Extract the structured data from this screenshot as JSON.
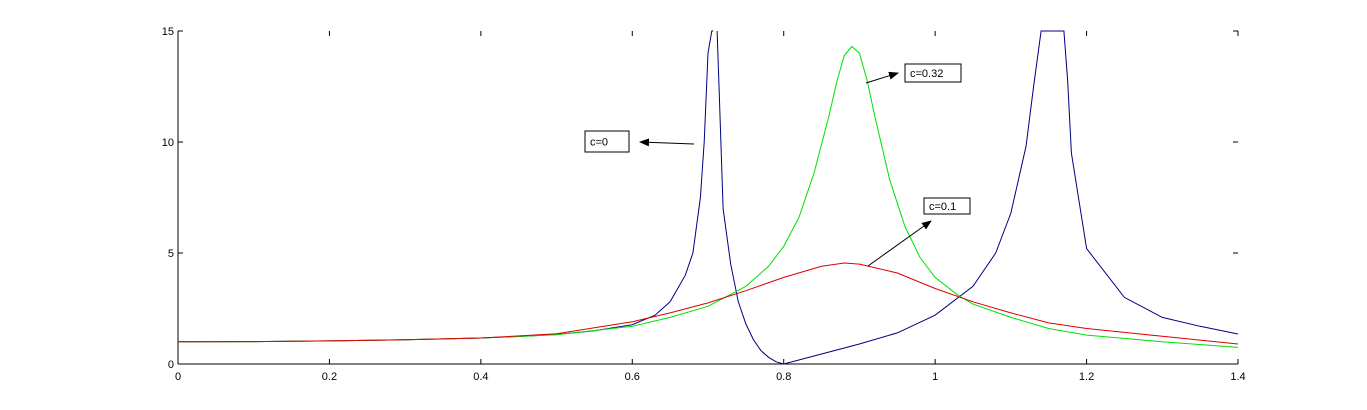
{
  "chart_data": {
    "type": "line",
    "title": "",
    "xlabel": "",
    "ylabel": "",
    "xlim": [
      0,
      1.4
    ],
    "ylim": [
      0,
      15
    ],
    "grid": false,
    "legend": "none",
    "x_ticks": [
      "0",
      "0.2",
      "0.4",
      "0.6",
      "0.8",
      "1",
      "1.2",
      "1.4"
    ],
    "y_ticks": [
      "0",
      "5",
      "10",
      "15"
    ],
    "series": [
      {
        "color": "#000080",
        "x": [
          0,
          0.1,
          0.2,
          0.3,
          0.4,
          0.45,
          0.5,
          0.55,
          0.6,
          0.63,
          0.65,
          0.67,
          0.68,
          0.69,
          0.695,
          0.7,
          0.705,
          0.707
        ],
        "y": [
          1.0,
          1.01,
          1.04,
          1.09,
          1.17,
          1.24,
          1.33,
          1.5,
          1.77,
          2.2,
          2.8,
          4.0,
          5.0,
          7.5,
          10.0,
          14.0,
          15.0,
          15.0
        ]
      },
      {
        "color": "#000080",
        "x": [
          0.712,
          0.715,
          0.72,
          0.73,
          0.74,
          0.75,
          0.76,
          0.77,
          0.78,
          0.79,
          0.8,
          0.85,
          0.9,
          0.95,
          1.0,
          1.05,
          1.08,
          1.1,
          1.12,
          1.13,
          1.14,
          1.15,
          1.16,
          1.17,
          1.175,
          1.18,
          1.2,
          1.25,
          1.3,
          1.35,
          1.4
        ],
        "y": [
          15.0,
          12.0,
          7.0,
          4.5,
          2.8,
          1.8,
          1.1,
          0.6,
          0.3,
          0.1,
          0.0,
          0.45,
          0.9,
          1.4,
          2.2,
          3.5,
          5.0,
          6.8,
          9.8,
          12.5,
          15.0,
          15.0,
          15.0,
          15.0,
          12.8,
          9.5,
          5.2,
          3.0,
          2.1,
          1.7,
          1.35
        ]
      },
      {
        "color": "#00e000",
        "x": [
          0,
          0.1,
          0.2,
          0.3,
          0.4,
          0.5,
          0.6,
          0.65,
          0.7,
          0.75,
          0.78,
          0.8,
          0.82,
          0.84,
          0.86,
          0.87,
          0.88,
          0.89,
          0.9,
          0.91,
          0.92,
          0.94,
          0.96,
          0.98,
          1.0,
          1.03,
          1.05,
          1.1,
          1.15,
          1.2,
          1.3,
          1.4
        ],
        "y": [
          1.0,
          1.01,
          1.04,
          1.09,
          1.17,
          1.32,
          1.7,
          2.1,
          2.6,
          3.5,
          4.4,
          5.3,
          6.6,
          8.6,
          11.2,
          12.7,
          13.9,
          14.3,
          14.0,
          12.8,
          11.2,
          8.3,
          6.2,
          4.8,
          3.9,
          3.1,
          2.7,
          2.1,
          1.6,
          1.3,
          1.0,
          0.75
        ]
      },
      {
        "color": "#e00000",
        "x": [
          0,
          0.1,
          0.2,
          0.3,
          0.4,
          0.5,
          0.6,
          0.65,
          0.7,
          0.75,
          0.8,
          0.85,
          0.88,
          0.9,
          0.95,
          1.0,
          1.05,
          1.1,
          1.15,
          1.2,
          1.3,
          1.4
        ],
        "y": [
          1.0,
          1.01,
          1.04,
          1.09,
          1.17,
          1.36,
          1.9,
          2.3,
          2.75,
          3.3,
          3.9,
          4.4,
          4.55,
          4.5,
          4.1,
          3.4,
          2.8,
          2.3,
          1.85,
          1.6,
          1.25,
          0.9
        ]
      }
    ],
    "annotations": [
      {
        "text": "c=0",
        "arrow_to": [
          0.693,
          9.9
        ]
      },
      {
        "text": "c=0.32",
        "arrow_to": [
          0.875,
          12.9
        ]
      },
      {
        "text": "c=0.1",
        "arrow_to": [
          0.905,
          4.5
        ]
      }
    ]
  }
}
